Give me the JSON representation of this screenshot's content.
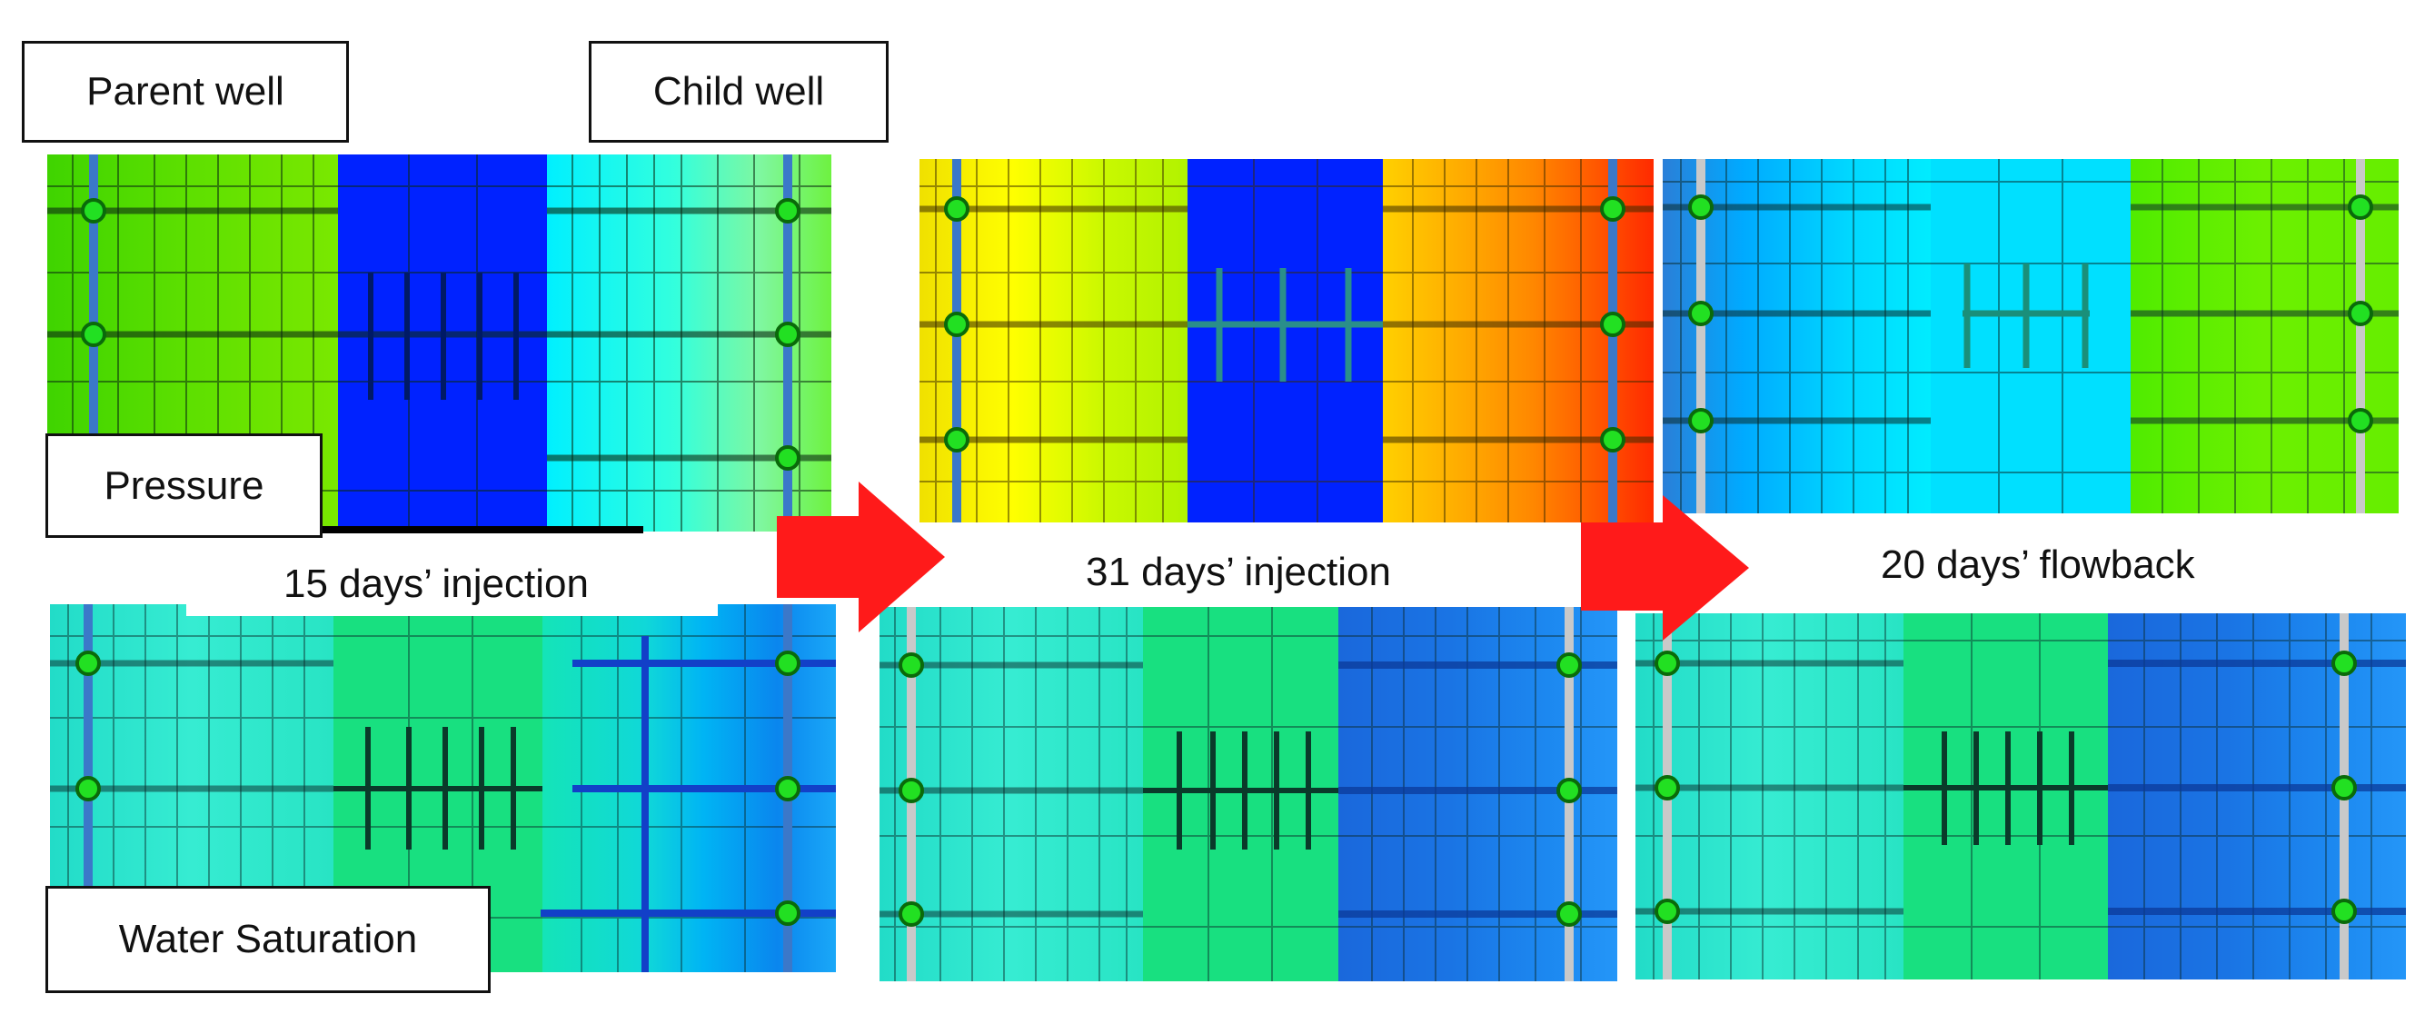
{
  "labels": {
    "parent_well": "Parent well",
    "child_well": "Child well",
    "pressure": "Pressure",
    "water_saturation": "Water Saturation"
  },
  "stages": [
    {
      "caption": "15 days’ injection"
    },
    {
      "caption": "31 days’ injection"
    },
    {
      "caption": "20 days’ flowback"
    }
  ],
  "colors": {
    "arrow": "#ff1a1a",
    "well_marker": "#22e022",
    "well_marker_outline": "#0a6a0a",
    "grid_line": "#0b2a12",
    "wellbore_blue": "#3b78c9",
    "wellbore_gray": "#c9c9c9",
    "fracture_dark": "#0a3a2a"
  },
  "panels": {
    "pressure_15d": {
      "wellbore": "blue",
      "left_zone": [
        "#3fd400",
        "#5ee000",
        "#7ae800"
      ],
      "middle_zone": [
        "#0022ff",
        "#0022ff",
        "#0022ff"
      ],
      "right_zone": [
        "#00f0ff",
        "#33ffdd",
        "#7ff7a0",
        "#6ef240"
      ]
    },
    "pressure_31d": {
      "wellbore": "blue",
      "left_zone": [
        "#f0e000",
        "#ffff00",
        "#c8f800",
        "#b2f200"
      ],
      "middle_zone": [
        "#0022ff",
        "#0022ff",
        "#0022ff"
      ],
      "right_zone": [
        "#ffc800",
        "#ffaa00",
        "#ff8800",
        "#ff5500",
        "#ff3000"
      ]
    },
    "pressure_flowback": {
      "wellbore": "gray",
      "left_zone": [
        "#2a7fd8",
        "#00aaff",
        "#00d8ff",
        "#00ecff"
      ],
      "middle_zone": [
        "#00e0ff",
        "#00e0ff",
        "#00e0ff"
      ],
      "right_zone": [
        "#55f000",
        "#6cf000",
        "#7cf200",
        "#66ee00"
      ]
    },
    "saturation_15d": {
      "wellbore": "blue",
      "left_zone": [
        "#1fe0d0",
        "#30ecd0"
      ],
      "middle_zone": [
        "#18e080",
        "#18e080",
        "#18e080"
      ],
      "right_zone": [
        "#10e8c0",
        "#00b0f0",
        "#0080f0"
      ]
    },
    "saturation_31d": {
      "wellbore": "gray",
      "left_zone": [
        "#1fe0d0",
        "#30ecd0",
        "#2ae8c8"
      ],
      "middle_zone": [
        "#18e080",
        "#18e080",
        "#18e080"
      ],
      "right_zone": [
        "#1a70e0",
        "#1860e0",
        "#1a80f0",
        "#2090f8"
      ]
    },
    "saturation_flowback": {
      "wellbore": "gray",
      "left_zone": [
        "#1fe0d0",
        "#30ecd0",
        "#2ae8c8"
      ],
      "middle_zone": [
        "#18e080",
        "#18e080",
        "#18e080"
      ],
      "right_zone": [
        "#1a70e0",
        "#1a80f0",
        "#2090f8",
        "#1a78e8"
      ]
    }
  }
}
